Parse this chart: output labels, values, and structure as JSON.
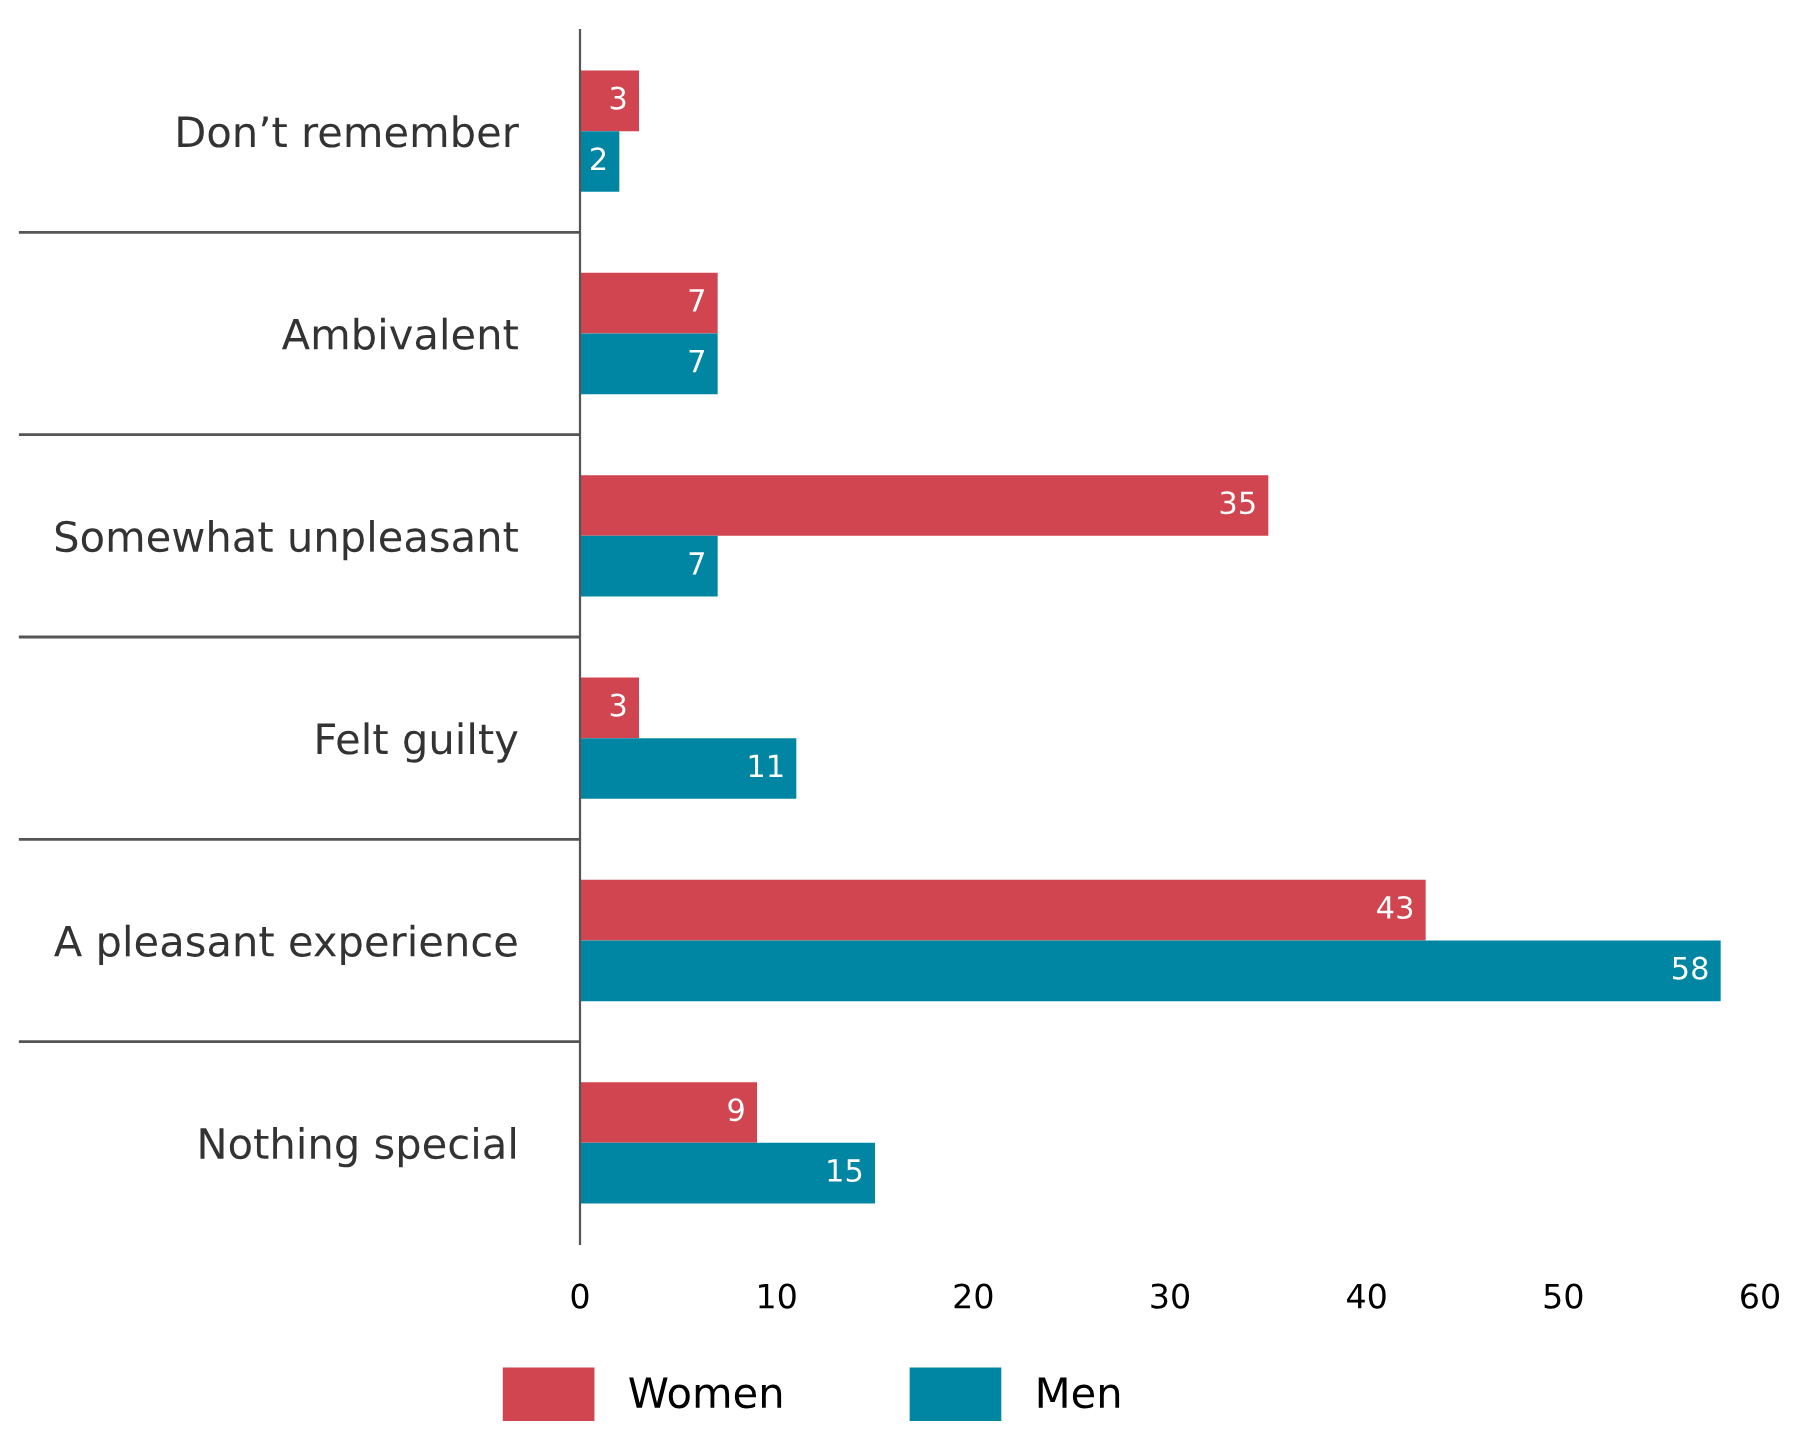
{
  "chart_data": {
    "type": "bar",
    "orientation": "horizontal",
    "categories": [
      "Don’t remember",
      "Ambivalent",
      "Somewhat unpleasant",
      "Felt guilty",
      "A pleasant experience",
      "Nothing special"
    ],
    "series": [
      {
        "name": "Women",
        "color": "#d0454f",
        "values": [
          3,
          7,
          35,
          3,
          43,
          9
        ]
      },
      {
        "name": "Men",
        "color": "#0086a3",
        "values": [
          2,
          7,
          7,
          11,
          58,
          15
        ]
      }
    ],
    "xlim": [
      0,
      60
    ],
    "xticks": [
      0,
      10,
      20,
      30,
      40,
      50,
      60
    ],
    "data_labels": true,
    "grid": false,
    "legend": "bottom"
  }
}
